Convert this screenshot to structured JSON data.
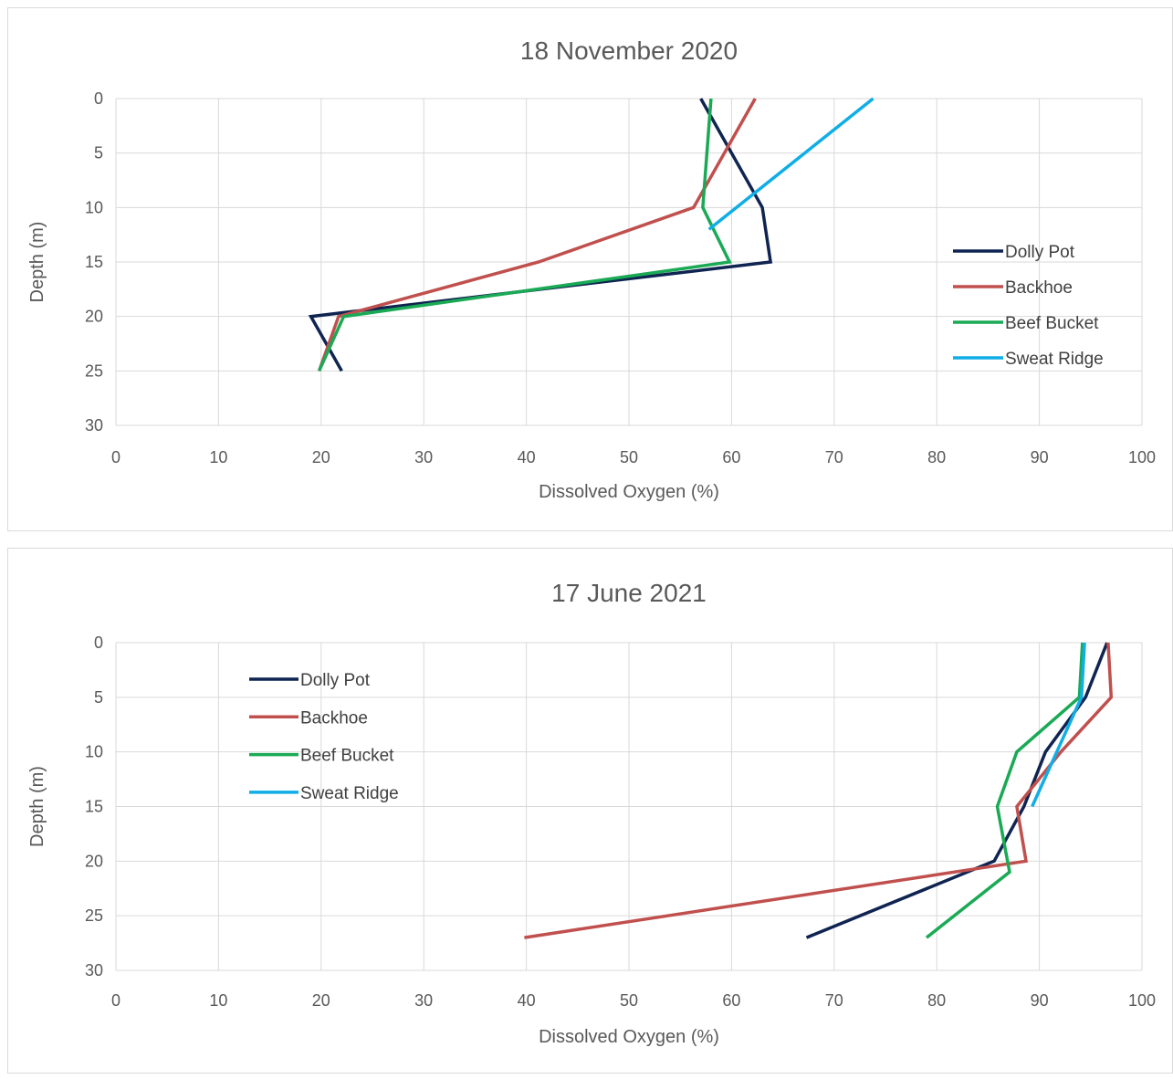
{
  "colors": {
    "dolly_pot": "#0f2451",
    "backhoe": "#c0504d",
    "beef_bucket": "#1aaa55",
    "sweat_ridge": "#10aee6"
  },
  "chart_data": [
    {
      "type": "line",
      "title": "18 November 2020",
      "xlabel": "Dissolved Oxygen (%)",
      "ylabel": "Depth (m)",
      "xlim": [
        0,
        100
      ],
      "ylim": [
        0,
        30
      ],
      "y_inverted": true,
      "xticks": [
        "0",
        "10",
        "20",
        "30",
        "40",
        "50",
        "60",
        "70",
        "80",
        "90",
        "100"
      ],
      "yticks": [
        "0",
        "5",
        "10",
        "15",
        "20",
        "25",
        "30"
      ],
      "grid": true,
      "legend_position": "right",
      "series": [
        {
          "name": "Dolly Pot",
          "color": "#0f2451",
          "points": [
            [
              57,
              0
            ],
            [
              63,
              10
            ],
            [
              63.8,
              15
            ],
            [
              19,
              20
            ],
            [
              22,
              25
            ]
          ]
        },
        {
          "name": "Backhoe",
          "color": "#c0504d",
          "points": [
            [
              62.3,
              0
            ],
            [
              56.3,
              10
            ],
            [
              41.2,
              15
            ],
            [
              21.7,
              20
            ],
            [
              19.8,
              25
            ]
          ]
        },
        {
          "name": "Beef Bucket",
          "color": "#1aaa55",
          "points": [
            [
              58,
              0
            ],
            [
              57.2,
              10
            ],
            [
              59.8,
              15
            ],
            [
              22.2,
              20
            ],
            [
              19.8,
              25
            ]
          ]
        },
        {
          "name": "Sweat Ridge",
          "color": "#10aee6",
          "points": [
            [
              73.8,
              0
            ],
            [
              57.8,
              12
            ]
          ]
        }
      ]
    },
    {
      "type": "line",
      "title": "17 June 2021",
      "xlabel": "Dissolved Oxygen (%)",
      "ylabel": "Depth (m)",
      "xlim": [
        0,
        100
      ],
      "ylim": [
        0,
        30
      ],
      "y_inverted": true,
      "xticks": [
        "0",
        "10",
        "20",
        "30",
        "40",
        "50",
        "60",
        "70",
        "80",
        "90",
        "100"
      ],
      "yticks": [
        "0",
        "5",
        "10",
        "15",
        "20",
        "25",
        "30"
      ],
      "grid": true,
      "legend_position": "top-left",
      "series": [
        {
          "name": "Dolly Pot",
          "color": "#0f2451",
          "points": [
            [
              96.6,
              0
            ],
            [
              94.5,
              5
            ],
            [
              90.6,
              10
            ],
            [
              88.5,
              15
            ],
            [
              85.6,
              20
            ],
            [
              67.3,
              27
            ]
          ]
        },
        {
          "name": "Backhoe",
          "color": "#c0504d",
          "points": [
            [
              96.7,
              0
            ],
            [
              97,
              5
            ],
            [
              92.1,
              10
            ],
            [
              87.8,
              15
            ],
            [
              88.7,
              20
            ],
            [
              39.8,
              27
            ]
          ]
        },
        {
          "name": "Beef Bucket",
          "color": "#1aaa55",
          "points": [
            [
              94.2,
              0
            ],
            [
              93.9,
              5
            ],
            [
              87.8,
              10
            ],
            [
              85.9,
              15
            ],
            [
              87.1,
              21
            ],
            [
              79,
              27
            ]
          ]
        },
        {
          "name": "Sweat Ridge",
          "color": "#10aee6",
          "points": [
            [
              94.4,
              0
            ],
            [
              94.1,
              5
            ],
            [
              89.3,
              15
            ]
          ]
        }
      ]
    }
  ]
}
